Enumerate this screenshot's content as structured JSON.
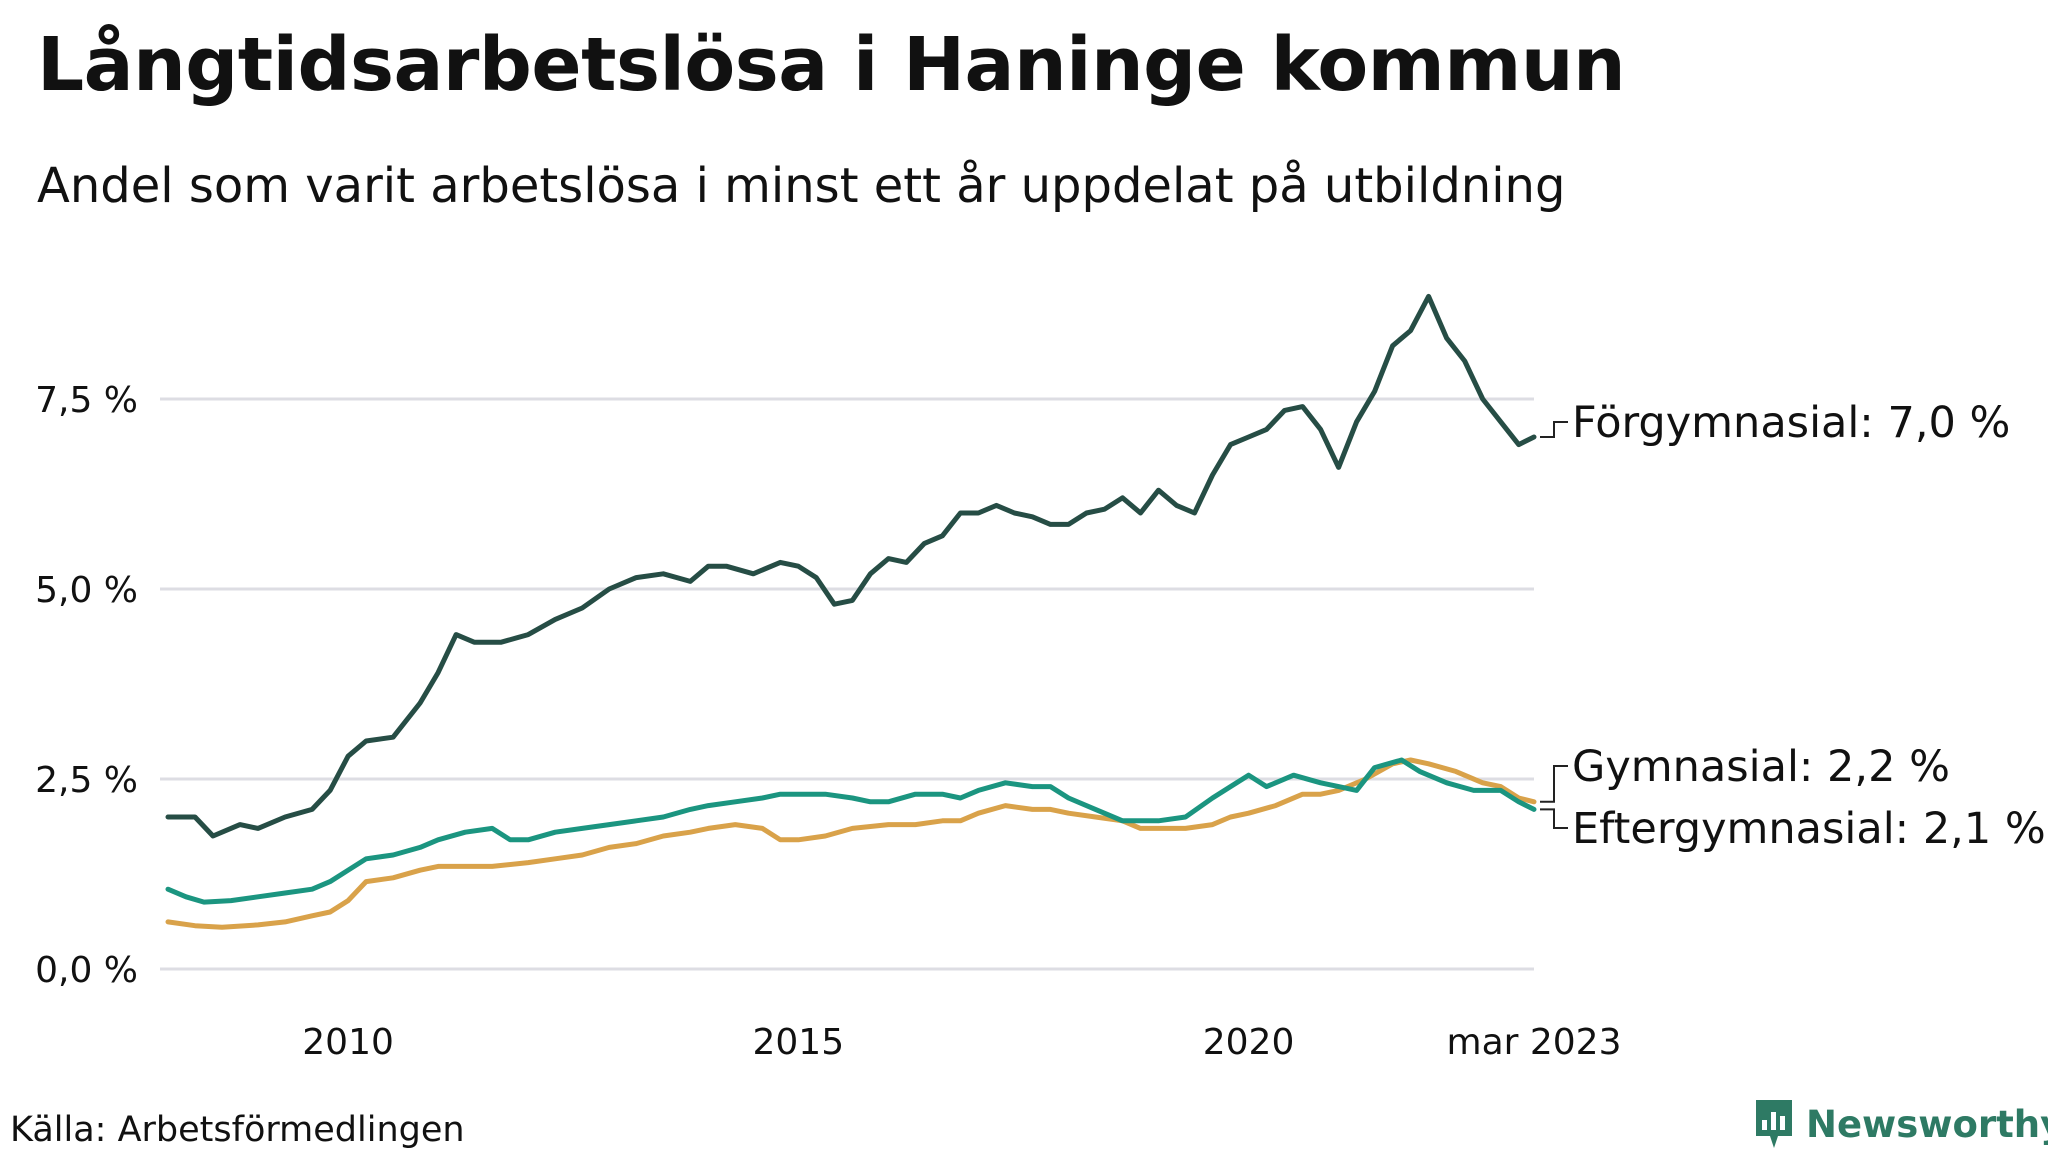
{
  "header": {
    "title": "Långtidsarbetslösa i Haninge kommun",
    "subtitle": "Andel som varit arbetslösa i minst ett år uppdelat på utbildning"
  },
  "footer": {
    "source": "Källa: Arbetsförmedlingen",
    "brand": "Newsworthy"
  },
  "colors": {
    "forgymnasial": "#264d45",
    "gymnasial": "#d9a24a",
    "eftergymnasial": "#1b9580",
    "grid": "#dddde3",
    "brand": "#2e7a64"
  },
  "chart_data": {
    "type": "line",
    "title": "Långtidsarbetslösa i Haninge kommun",
    "subtitle": "Andel som varit arbetslösa i minst ett år uppdelat på utbildning",
    "x_ticks": [
      {
        "value": 2010,
        "label": "2010"
      },
      {
        "value": 2015,
        "label": "2015"
      },
      {
        "value": 2020,
        "label": "2020"
      },
      {
        "value": 2023.17,
        "label": "mar 2023"
      }
    ],
    "y_ticks": [
      {
        "value": 0,
        "label": "0,0 %"
      },
      {
        "value": 2.5,
        "label": "2,5 %"
      },
      {
        "value": 5,
        "label": "5,0 %"
      },
      {
        "value": 7.5,
        "label": "7,5 %"
      }
    ],
    "xlim": [
      2008.0,
      2023.17
    ],
    "ylim": [
      0,
      8.9
    ],
    "grid": true,
    "legend": "end-of-line labels",
    "series": [
      {
        "name": "Förgymnasial",
        "end_label": "Förgymnasial: 7,0 %",
        "color": "#264d45",
        "points": [
          [
            2008.0,
            2.0
          ],
          [
            2008.3,
            2.0
          ],
          [
            2008.5,
            1.75
          ],
          [
            2008.8,
            1.9
          ],
          [
            2009.0,
            1.85
          ],
          [
            2009.3,
            2.0
          ],
          [
            2009.6,
            2.1
          ],
          [
            2009.8,
            2.35
          ],
          [
            2010.0,
            2.8
          ],
          [
            2010.2,
            3.0
          ],
          [
            2010.5,
            3.05
          ],
          [
            2010.8,
            3.5
          ],
          [
            2011.0,
            3.9
          ],
          [
            2011.2,
            4.4
          ],
          [
            2011.4,
            4.3
          ],
          [
            2011.7,
            4.3
          ],
          [
            2012.0,
            4.4
          ],
          [
            2012.3,
            4.6
          ],
          [
            2012.6,
            4.75
          ],
          [
            2012.9,
            5.0
          ],
          [
            2013.2,
            5.15
          ],
          [
            2013.5,
            5.2
          ],
          [
            2013.8,
            5.1
          ],
          [
            2014.0,
            5.3
          ],
          [
            2014.2,
            5.3
          ],
          [
            2014.5,
            5.2
          ],
          [
            2014.8,
            5.35
          ],
          [
            2015.0,
            5.3
          ],
          [
            2015.2,
            5.15
          ],
          [
            2015.4,
            4.8
          ],
          [
            2015.6,
            4.85
          ],
          [
            2015.8,
            5.2
          ],
          [
            2016.0,
            5.4
          ],
          [
            2016.2,
            5.35
          ],
          [
            2016.4,
            5.6
          ],
          [
            2016.6,
            5.7
          ],
          [
            2016.8,
            6.0
          ],
          [
            2017.0,
            6.0
          ],
          [
            2017.2,
            6.1
          ],
          [
            2017.4,
            6.0
          ],
          [
            2017.6,
            5.95
          ],
          [
            2017.8,
            5.85
          ],
          [
            2018.0,
            5.85
          ],
          [
            2018.2,
            6.0
          ],
          [
            2018.4,
            6.05
          ],
          [
            2018.6,
            6.2
          ],
          [
            2018.8,
            6.0
          ],
          [
            2019.0,
            6.3
          ],
          [
            2019.2,
            6.1
          ],
          [
            2019.4,
            6.0
          ],
          [
            2019.6,
            6.5
          ],
          [
            2019.8,
            6.9
          ],
          [
            2020.0,
            7.0
          ],
          [
            2020.2,
            7.1
          ],
          [
            2020.4,
            7.35
          ],
          [
            2020.6,
            7.4
          ],
          [
            2020.8,
            7.1
          ],
          [
            2021.0,
            6.6
          ],
          [
            2021.2,
            7.2
          ],
          [
            2021.4,
            7.6
          ],
          [
            2021.6,
            8.2
          ],
          [
            2021.8,
            8.4
          ],
          [
            2022.0,
            8.85
          ],
          [
            2022.2,
            8.3
          ],
          [
            2022.4,
            8.0
          ],
          [
            2022.6,
            7.5
          ],
          [
            2022.8,
            7.2
          ],
          [
            2023.0,
            6.9
          ],
          [
            2023.17,
            7.0
          ]
        ]
      },
      {
        "name": "Gymnasial",
        "end_label": "Gymnasial: 2,2 %",
        "color": "#d9a24a",
        "points": [
          [
            2008.0,
            0.62
          ],
          [
            2008.3,
            0.57
          ],
          [
            2008.6,
            0.55
          ],
          [
            2009.0,
            0.58
          ],
          [
            2009.3,
            0.62
          ],
          [
            2009.6,
            0.7
          ],
          [
            2009.8,
            0.75
          ],
          [
            2010.0,
            0.9
          ],
          [
            2010.2,
            1.15
          ],
          [
            2010.5,
            1.2
          ],
          [
            2010.8,
            1.3
          ],
          [
            2011.0,
            1.35
          ],
          [
            2011.3,
            1.35
          ],
          [
            2011.6,
            1.35
          ],
          [
            2012.0,
            1.4
          ],
          [
            2012.3,
            1.45
          ],
          [
            2012.6,
            1.5
          ],
          [
            2012.9,
            1.6
          ],
          [
            2013.2,
            1.65
          ],
          [
            2013.5,
            1.75
          ],
          [
            2013.8,
            1.8
          ],
          [
            2014.0,
            1.85
          ],
          [
            2014.3,
            1.9
          ],
          [
            2014.6,
            1.85
          ],
          [
            2014.8,
            1.7
          ],
          [
            2015.0,
            1.7
          ],
          [
            2015.3,
            1.75
          ],
          [
            2015.6,
            1.85
          ],
          [
            2016.0,
            1.9
          ],
          [
            2016.3,
            1.9
          ],
          [
            2016.6,
            1.95
          ],
          [
            2016.8,
            1.95
          ],
          [
            2017.0,
            2.05
          ],
          [
            2017.3,
            2.15
          ],
          [
            2017.6,
            2.1
          ],
          [
            2017.8,
            2.1
          ],
          [
            2018.0,
            2.05
          ],
          [
            2018.3,
            2.0
          ],
          [
            2018.6,
            1.95
          ],
          [
            2018.8,
            1.85
          ],
          [
            2019.0,
            1.85
          ],
          [
            2019.3,
            1.85
          ],
          [
            2019.6,
            1.9
          ],
          [
            2019.8,
            2.0
          ],
          [
            2020.0,
            2.05
          ],
          [
            2020.3,
            2.15
          ],
          [
            2020.6,
            2.3
          ],
          [
            2020.8,
            2.3
          ],
          [
            2021.0,
            2.35
          ],
          [
            2021.3,
            2.5
          ],
          [
            2021.6,
            2.7
          ],
          [
            2021.8,
            2.75
          ],
          [
            2022.0,
            2.7
          ],
          [
            2022.3,
            2.6
          ],
          [
            2022.6,
            2.45
          ],
          [
            2022.8,
            2.4
          ],
          [
            2023.0,
            2.25
          ],
          [
            2023.17,
            2.2
          ]
        ]
      },
      {
        "name": "Eftergymnasial",
        "end_label": "Eftergymnasial: 2,1 %",
        "color": "#1b9580",
        "points": [
          [
            2008.0,
            1.05
          ],
          [
            2008.2,
            0.95
          ],
          [
            2008.4,
            0.88
          ],
          [
            2008.7,
            0.9
          ],
          [
            2009.0,
            0.95
          ],
          [
            2009.3,
            1.0
          ],
          [
            2009.6,
            1.05
          ],
          [
            2009.8,
            1.15
          ],
          [
            2010.0,
            1.3
          ],
          [
            2010.2,
            1.45
          ],
          [
            2010.5,
            1.5
          ],
          [
            2010.8,
            1.6
          ],
          [
            2011.0,
            1.7
          ],
          [
            2011.3,
            1.8
          ],
          [
            2011.6,
            1.85
          ],
          [
            2011.8,
            1.7
          ],
          [
            2012.0,
            1.7
          ],
          [
            2012.3,
            1.8
          ],
          [
            2012.6,
            1.85
          ],
          [
            2012.9,
            1.9
          ],
          [
            2013.2,
            1.95
          ],
          [
            2013.5,
            2.0
          ],
          [
            2013.8,
            2.1
          ],
          [
            2014.0,
            2.15
          ],
          [
            2014.3,
            2.2
          ],
          [
            2014.6,
            2.25
          ],
          [
            2014.8,
            2.3
          ],
          [
            2015.0,
            2.3
          ],
          [
            2015.3,
            2.3
          ],
          [
            2015.6,
            2.25
          ],
          [
            2015.8,
            2.2
          ],
          [
            2016.0,
            2.2
          ],
          [
            2016.3,
            2.3
          ],
          [
            2016.6,
            2.3
          ],
          [
            2016.8,
            2.25
          ],
          [
            2017.0,
            2.35
          ],
          [
            2017.3,
            2.45
          ],
          [
            2017.6,
            2.4
          ],
          [
            2017.8,
            2.4
          ],
          [
            2018.0,
            2.25
          ],
          [
            2018.3,
            2.1
          ],
          [
            2018.6,
            1.95
          ],
          [
            2018.8,
            1.95
          ],
          [
            2019.0,
            1.95
          ],
          [
            2019.3,
            2.0
          ],
          [
            2019.6,
            2.25
          ],
          [
            2019.8,
            2.4
          ],
          [
            2020.0,
            2.55
          ],
          [
            2020.2,
            2.4
          ],
          [
            2020.5,
            2.55
          ],
          [
            2020.8,
            2.45
          ],
          [
            2021.0,
            2.4
          ],
          [
            2021.2,
            2.35
          ],
          [
            2021.4,
            2.65
          ],
          [
            2021.7,
            2.75
          ],
          [
            2021.9,
            2.6
          ],
          [
            2022.2,
            2.45
          ],
          [
            2022.5,
            2.35
          ],
          [
            2022.8,
            2.35
          ],
          [
            2023.0,
            2.2
          ],
          [
            2023.17,
            2.1
          ]
        ]
      }
    ]
  }
}
